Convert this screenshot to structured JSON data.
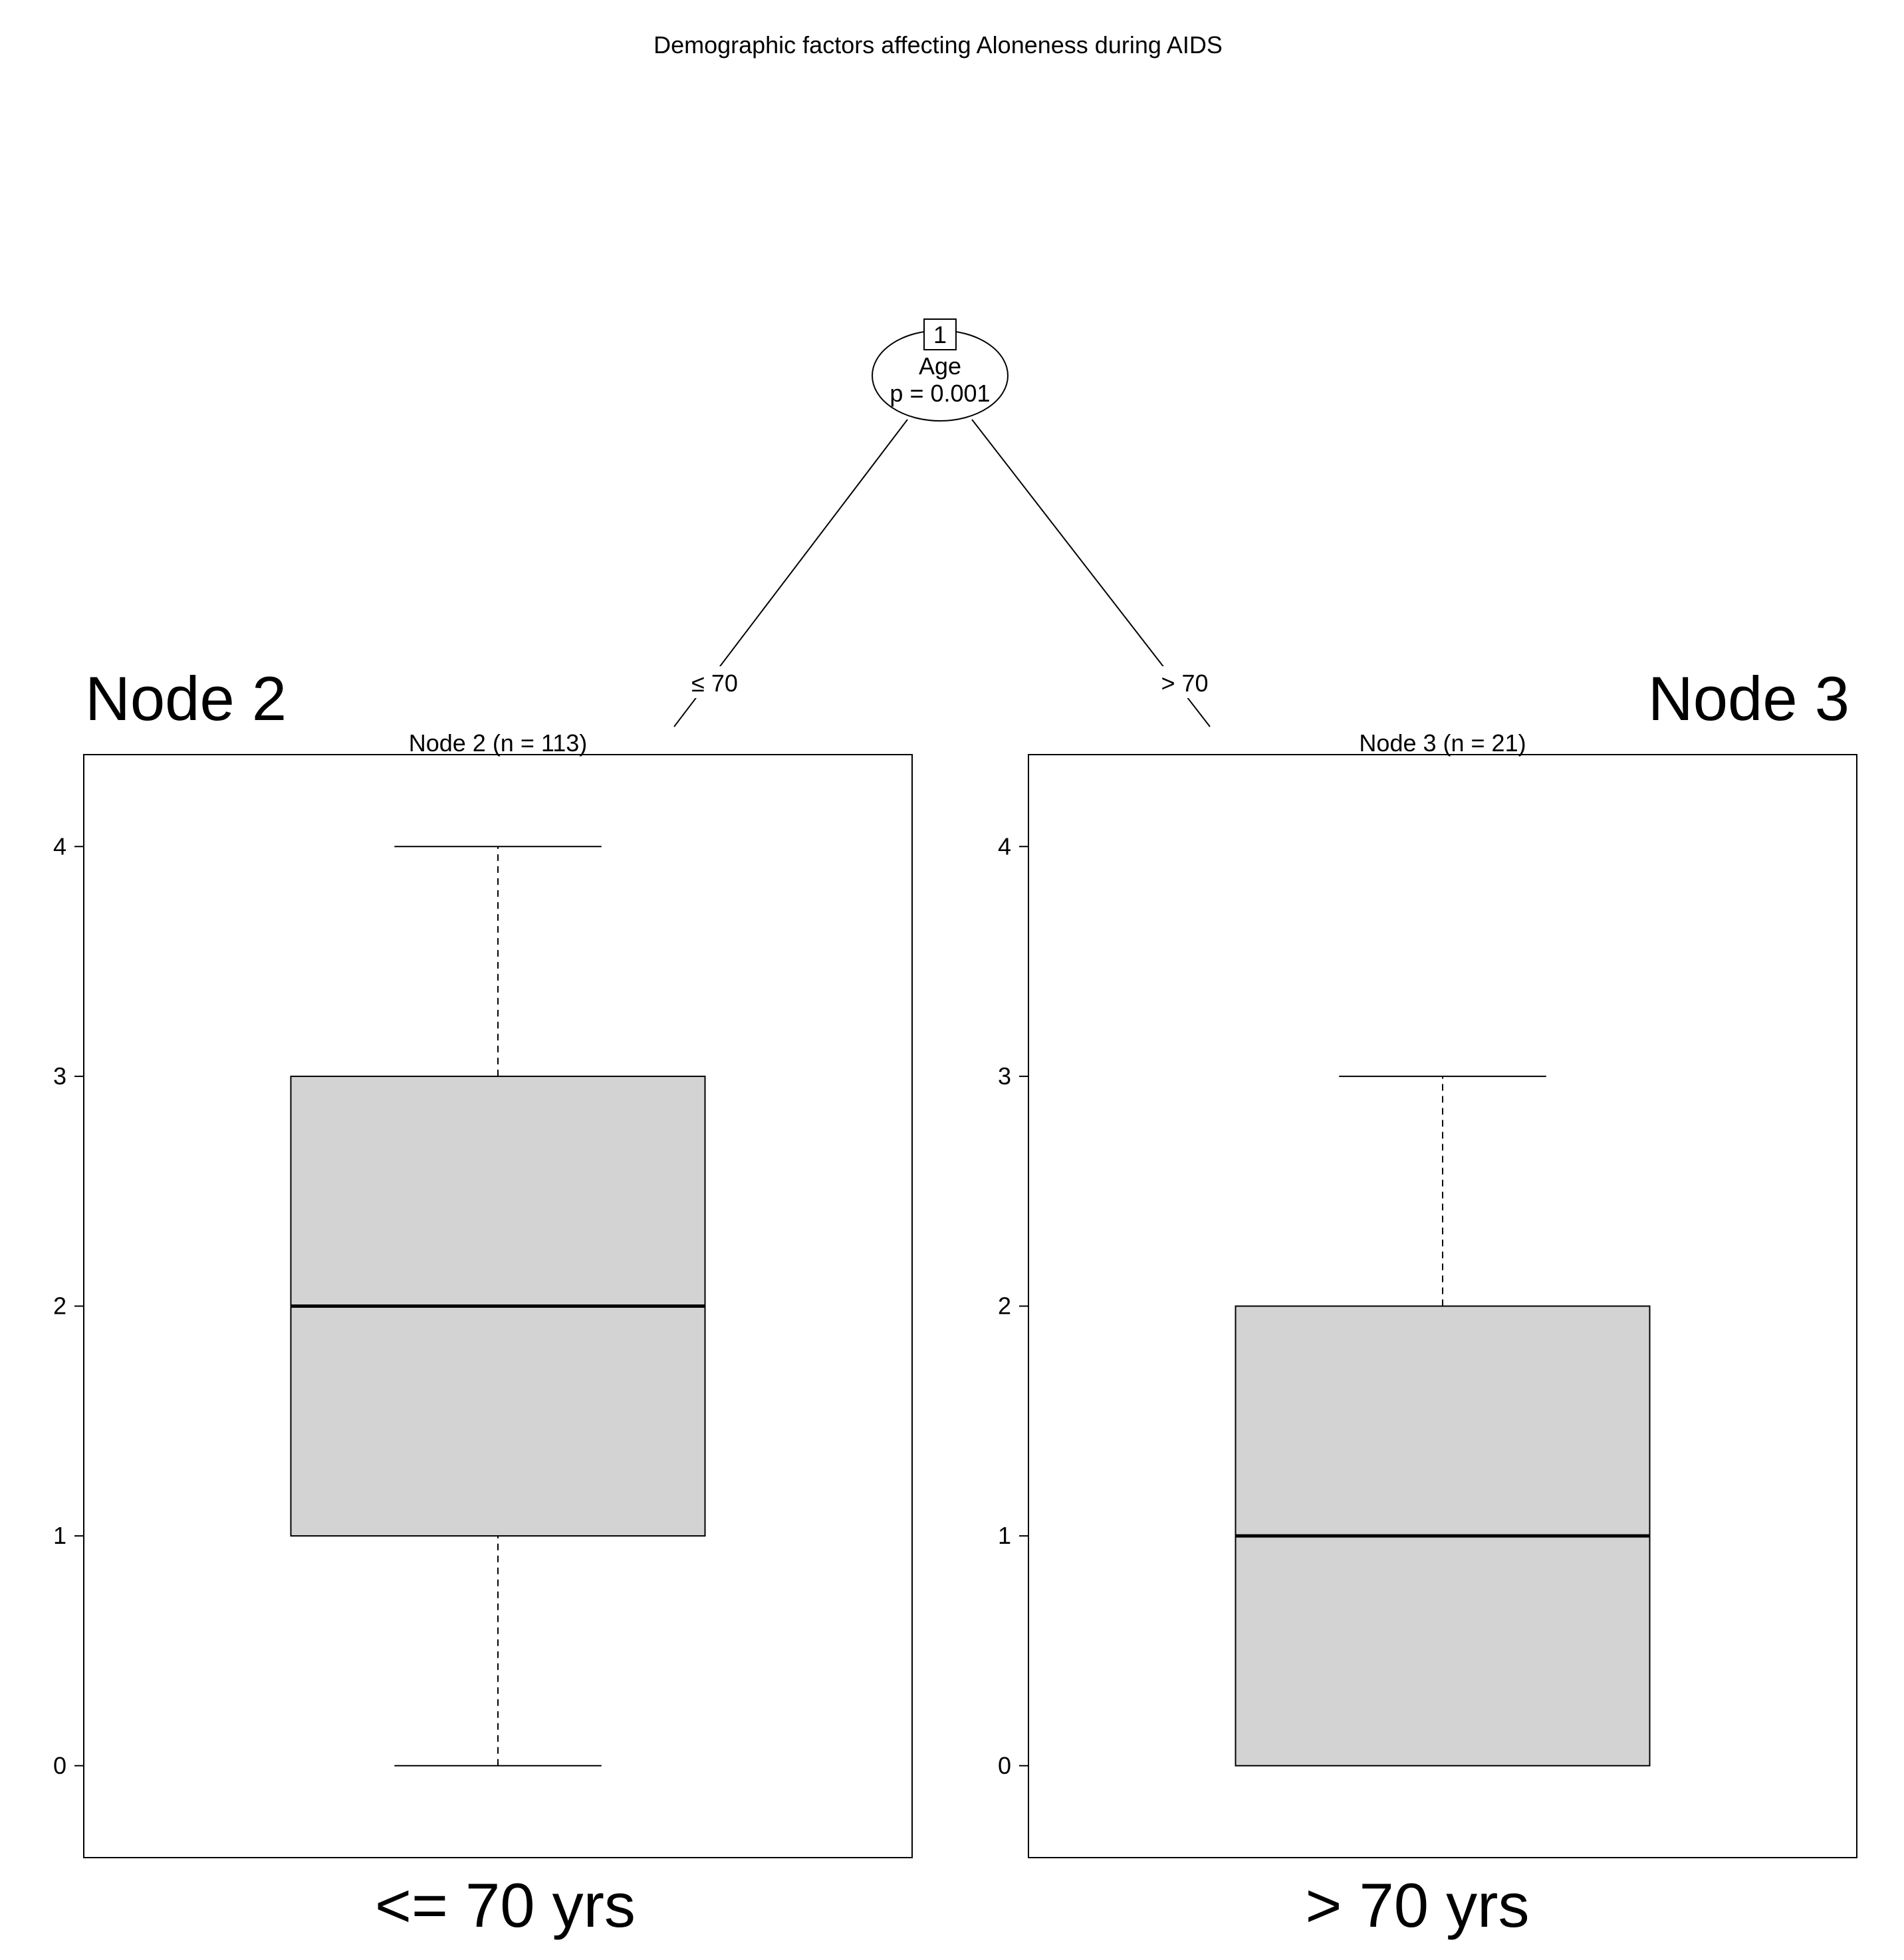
{
  "title": "Demographic factors affecting Aloneness during AIDS",
  "split_node": {
    "id": "1",
    "variable": "Age",
    "p_value": "p = 0.001"
  },
  "edges": {
    "left": "≤ 70",
    "right": "> 70"
  },
  "annotations": {
    "left_node": "Node 2",
    "right_node": "Node 3",
    "left_group": "<= 70 yrs",
    "right_group": "> 70 yrs"
  },
  "colors": {
    "box_fill": "#d3d3d3",
    "line": "#000000"
  },
  "chart_data": {
    "type": "boxplot",
    "title": "Demographic factors affecting Aloneness during AIDS",
    "y_ticks": [
      "0",
      "1",
      "2",
      "3",
      "4"
    ],
    "ylim": [
      -0.4,
      4.4
    ],
    "panels": [
      {
        "name": "Node 2 (n = 113)",
        "n": 113,
        "whisker_low": 0,
        "q1": 1,
        "median": 2,
        "q3": 3,
        "whisker_high": 4
      },
      {
        "name": "Node 3 (n = 21)",
        "n": 21,
        "whisker_low": 0,
        "q1": 0,
        "median": 1,
        "q3": 2,
        "whisker_high": 3
      }
    ]
  }
}
